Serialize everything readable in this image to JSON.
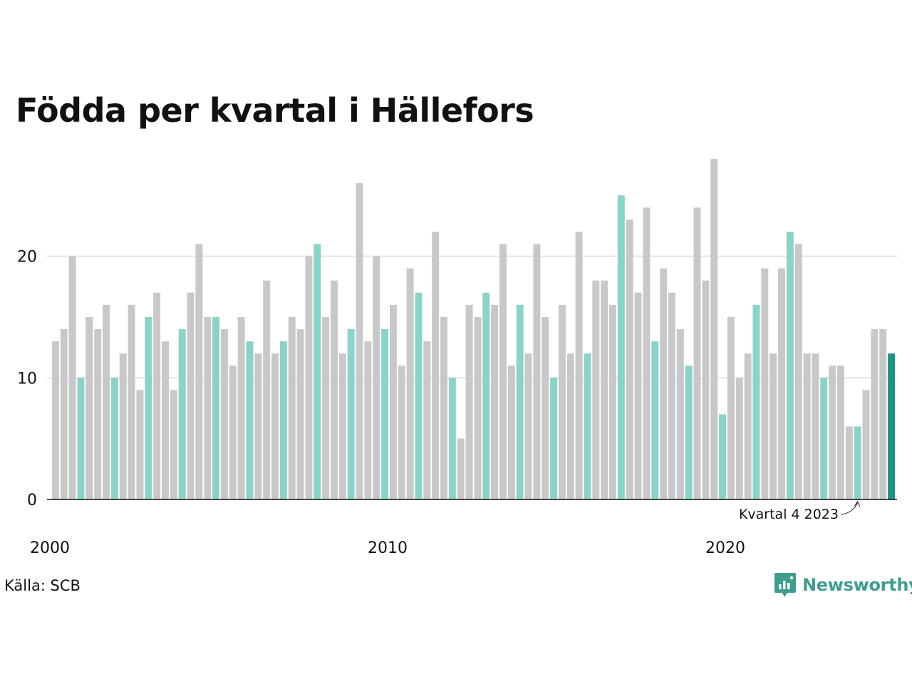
{
  "title": "Födda per kvartal i Hällefors",
  "source": "Källa: SCB",
  "brand": {
    "name": "Newsworthy",
    "icon": "bar-chart-bubble-icon"
  },
  "colors": {
    "default": "#c8c8c8",
    "q4": "#89d3c9",
    "highlight": "#1a9385",
    "grid": "#e3e3e3",
    "axis": "#111111"
  },
  "chart_data": {
    "type": "bar",
    "title": "Födda per kvartal i Hällefors",
    "xlabel": "",
    "ylabel": "",
    "ylim": [
      0,
      28
    ],
    "yticks": [
      0,
      10,
      20
    ],
    "xticks": [
      {
        "label": "2000",
        "year": 2000
      },
      {
        "label": "2010",
        "year": 2010
      },
      {
        "label": "2020",
        "year": 2020
      }
    ],
    "grid": true,
    "start": {
      "year": 2000,
      "quarter": 1
    },
    "values": [
      13,
      14,
      20,
      10,
      15,
      14,
      16,
      10,
      12,
      16,
      9,
      15,
      17,
      13,
      9,
      14,
      17,
      21,
      15,
      15,
      14,
      11,
      15,
      13,
      12,
      18,
      12,
      13,
      15,
      14,
      20,
      21,
      15,
      18,
      12,
      14,
      26,
      13,
      20,
      14,
      16,
      11,
      19,
      17,
      13,
      22,
      15,
      10,
      5,
      16,
      15,
      17,
      16,
      21,
      11,
      16,
      12,
      21,
      15,
      10,
      16,
      12,
      22,
      12,
      18,
      18,
      16,
      25,
      23,
      17,
      24,
      13,
      19,
      17,
      14,
      11,
      24,
      18,
      28,
      7,
      15,
      10,
      12,
      16,
      19,
      12,
      19,
      22,
      21,
      12,
      12,
      10,
      11,
      11,
      6,
      6,
      9,
      14,
      14,
      12
    ],
    "annotation": {
      "text": "Kvartal 4 2023",
      "index": 95
    }
  }
}
